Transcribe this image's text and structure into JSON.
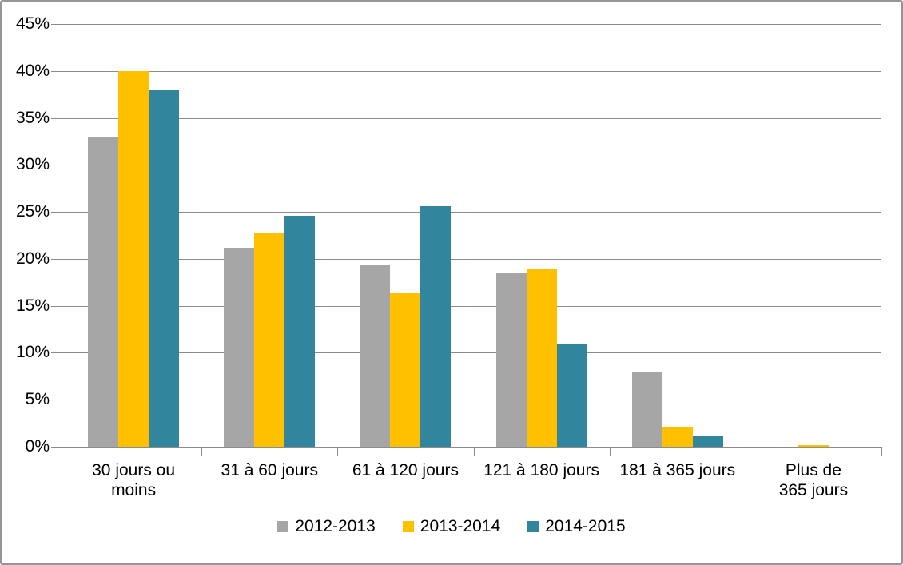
{
  "chart_data": {
    "type": "bar",
    "title": "",
    "categories": [
      "30 jours ou\nmoins",
      "31 à 60 jours",
      "61 à 120 jours",
      "121 à 180 jours",
      "181 à 365 jours",
      "Plus de 365 jours"
    ],
    "series": [
      {
        "name": "2012-2013",
        "color": "#A6A6A6",
        "values": [
          33,
          21.2,
          19.4,
          18.5,
          8,
          0
        ]
      },
      {
        "name": "2013-2014",
        "color": "#FFC000",
        "values": [
          40,
          22.8,
          16.3,
          18.9,
          2.1,
          0.2
        ]
      },
      {
        "name": "2014-2015",
        "color": "#31859C",
        "values": [
          38,
          24.6,
          25.6,
          11,
          1.1,
          0
        ]
      }
    ],
    "y_axis": {
      "min": 0,
      "max": 45,
      "step": 5,
      "format": "percent",
      "tick_labels": [
        "0%",
        "5%",
        "10%",
        "15%",
        "20%",
        "25%",
        "30%",
        "35%",
        "40%",
        "45%"
      ]
    },
    "x_axis": {
      "label": ""
    },
    "legend": {
      "position": "bottom",
      "entries": [
        "2012-2013",
        "2013-2014",
        "2014-2015"
      ]
    },
    "grid": true
  },
  "style": {
    "background": "#FFFFFF",
    "border_color": "#969696",
    "grid_color": "#8C8C8C",
    "axis_color": "#8C8C8C",
    "text_color": "#000000"
  }
}
